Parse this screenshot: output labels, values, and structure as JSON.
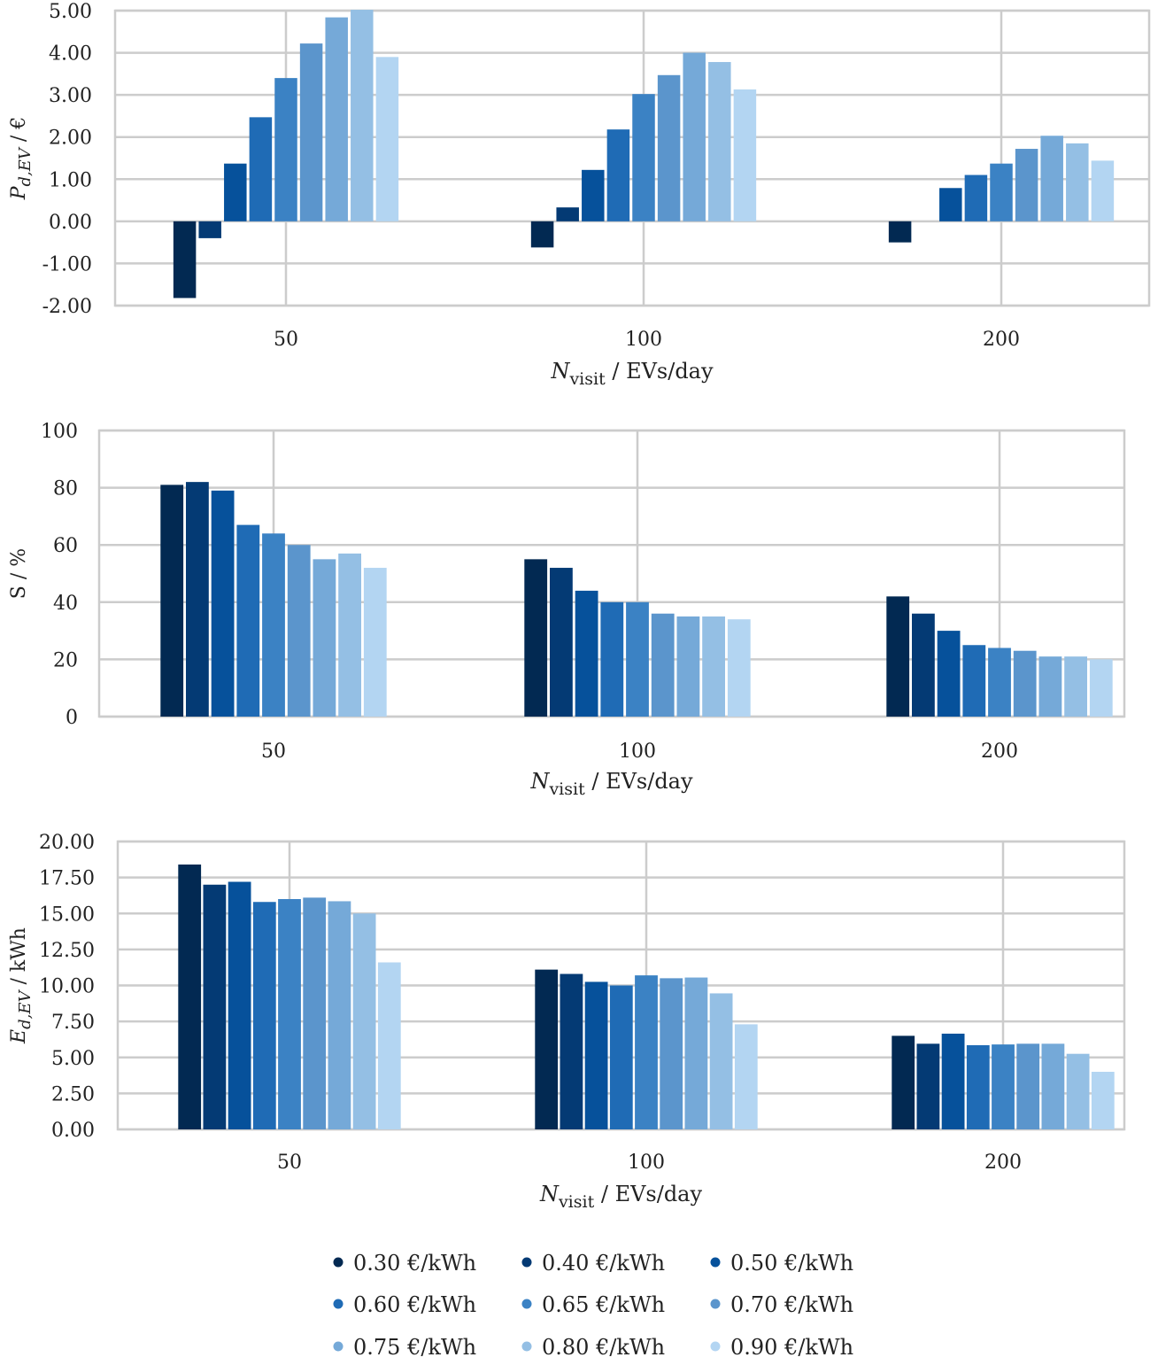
{
  "legend": [
    {
      "label": "0.30 €/kWh",
      "color": "#022952"
    },
    {
      "label": "0.40 €/kWh",
      "color": "#043a74"
    },
    {
      "label": "0.50 €/kWh",
      "color": "#06519b"
    },
    {
      "label": "0.60 €/kWh",
      "color": "#1f6bb5"
    },
    {
      "label": "0.65 €/kWh",
      "color": "#3b82c4"
    },
    {
      "label": "0.70 €/kWh",
      "color": "#5b95cc"
    },
    {
      "label": "0.75 €/kWh",
      "color": "#75a9d8"
    },
    {
      "label": "0.80 €/kWh",
      "color": "#94bfe4"
    },
    {
      "label": "0.90 €/kWh",
      "color": "#b3d5f2"
    }
  ],
  "chart_data": [
    {
      "type": "bar",
      "categories": [
        "50",
        "100",
        "200"
      ],
      "xlabel_main": "N",
      "xlabel_sub": "visit",
      "xlabel_rest": " / EVs/day",
      "ylabel_main": "P",
      "ylabel_sub": "d,EV",
      "ylabel_rest": " / €",
      "ylim": [
        -2.0,
        5.0
      ],
      "yticks": [
        -2,
        -1,
        0,
        1,
        2,
        3,
        4,
        5
      ],
      "ytick_labels": [
        "-2.00",
        "-1.00",
        "0.00",
        "1.00",
        "2.00",
        "3.00",
        "4.00",
        "5.00"
      ],
      "grid": true,
      "series": [
        {
          "name": "0.30 €/kWh",
          "values": [
            -1.82,
            -0.62,
            -0.5
          ]
        },
        {
          "name": "0.40 €/kWh",
          "values": [
            -0.4,
            0.33,
            0.0
          ]
        },
        {
          "name": "0.50 €/kWh",
          "values": [
            1.37,
            1.22,
            0.79
          ]
        },
        {
          "name": "0.60 €/kWh",
          "values": [
            2.47,
            2.18,
            1.1
          ]
        },
        {
          "name": "0.65 €/kWh",
          "values": [
            3.4,
            3.02,
            1.37
          ]
        },
        {
          "name": "0.70 €/kWh",
          "values": [
            4.22,
            3.47,
            1.72
          ]
        },
        {
          "name": "0.75 €/kWh",
          "values": [
            4.84,
            4.0,
            2.03
          ]
        },
        {
          "name": "0.80 €/kWh",
          "values": [
            5.02,
            3.78,
            1.85
          ]
        },
        {
          "name": "0.90 €/kWh",
          "values": [
            3.9,
            3.13,
            1.44
          ]
        }
      ]
    },
    {
      "type": "bar",
      "categories": [
        "50",
        "100",
        "200"
      ],
      "xlabel_main": "N",
      "xlabel_sub": "visit",
      "xlabel_rest": " / EVs/day",
      "ylabel_plain": "S / %",
      "ylim": [
        0,
        100
      ],
      "yticks": [
        0,
        20,
        40,
        60,
        80,
        100
      ],
      "ytick_labels": [
        "0",
        "20",
        "40",
        "60",
        "80",
        "100"
      ],
      "grid": true,
      "series": [
        {
          "name": "0.30 €/kWh",
          "values": [
            81,
            55,
            42
          ]
        },
        {
          "name": "0.40 €/kWh",
          "values": [
            82,
            52,
            36
          ]
        },
        {
          "name": "0.50 €/kWh",
          "values": [
            79,
            44,
            30
          ]
        },
        {
          "name": "0.60 €/kWh",
          "values": [
            67,
            40,
            25
          ]
        },
        {
          "name": "0.65 €/kWh",
          "values": [
            64,
            40,
            24
          ]
        },
        {
          "name": "0.70 €/kWh",
          "values": [
            60,
            36,
            23
          ]
        },
        {
          "name": "0.75 €/kWh",
          "values": [
            55,
            35,
            21
          ]
        },
        {
          "name": "0.80 €/kWh",
          "values": [
            57,
            35,
            21
          ]
        },
        {
          "name": "0.90 €/kWh",
          "values": [
            52,
            34,
            20
          ]
        }
      ]
    },
    {
      "type": "bar",
      "categories": [
        "50",
        "100",
        "200"
      ],
      "xlabel_main": "N",
      "xlabel_sub": "visit",
      "xlabel_rest": " / EVs/day",
      "ylabel_main": "E",
      "ylabel_sub": "d,EV",
      "ylabel_rest": " / kWh",
      "ylim": [
        0,
        20
      ],
      "yticks": [
        0,
        2.5,
        5,
        7.5,
        10,
        12.5,
        15,
        17.5,
        20
      ],
      "ytick_labels": [
        "0.00",
        "2.50",
        "5.00",
        "7.50",
        "10.00",
        "12.50",
        "15.00",
        "17.50",
        "20.00"
      ],
      "grid": true,
      "series": [
        {
          "name": "0.30 €/kWh",
          "values": [
            18.4,
            11.1,
            6.5
          ]
        },
        {
          "name": "0.40 €/kWh",
          "values": [
            17.0,
            10.8,
            5.95
          ]
        },
        {
          "name": "0.50 €/kWh",
          "values": [
            17.2,
            10.25,
            6.65
          ]
        },
        {
          "name": "0.60 €/kWh",
          "values": [
            15.8,
            10.0,
            5.85
          ]
        },
        {
          "name": "0.65 €/kWh",
          "values": [
            16.0,
            10.7,
            5.9
          ]
        },
        {
          "name": "0.70 €/kWh",
          "values": [
            16.1,
            10.5,
            5.95
          ]
        },
        {
          "name": "0.75 €/kWh",
          "values": [
            15.85,
            10.55,
            5.95
          ]
        },
        {
          "name": "0.80 €/kWh",
          "values": [
            15.0,
            9.45,
            5.25
          ]
        },
        {
          "name": "0.90 €/kWh",
          "values": [
            11.6,
            7.3,
            4.0
          ]
        }
      ]
    }
  ]
}
